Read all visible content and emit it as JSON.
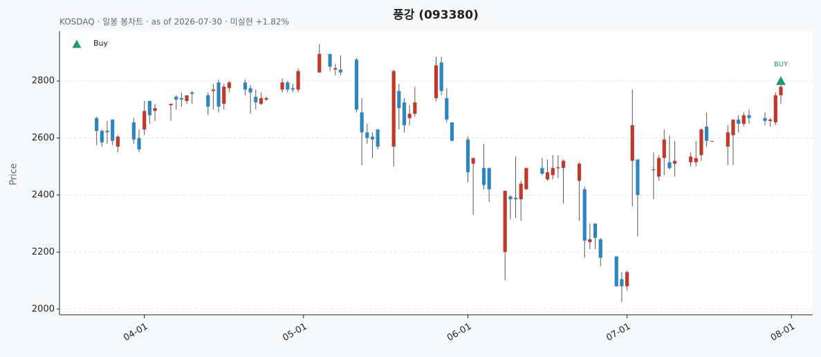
{
  "chart_data": {
    "type": "candlestick",
    "title": "풍강 (093380)",
    "subtitle": "KOSDAQ · 일봉 봉차트 · as of 2026-07-30 · 미실현 +1.82%",
    "y_label": "Price",
    "up_color": "#c0392b",
    "down_color": "#2e86c1",
    "wick_color": "#555555",
    "grid": true,
    "legend": "upper left",
    "xlim": [
      "03-16",
      "08-05"
    ],
    "xticks": [
      "04-01",
      "05-01",
      "06-01",
      "07-01",
      "08-01"
    ],
    "ylim": [
      1980,
      2975
    ],
    "yticks": [
      2000,
      2200,
      2400,
      2600,
      2800
    ],
    "x": [
      "03-23",
      "03-24",
      "03-25",
      "03-26",
      "03-27",
      "03-30",
      "03-31",
      "04-01",
      "04-02",
      "04-03",
      "04-06",
      "04-07",
      "04-08",
      "04-09",
      "04-10",
      "04-13",
      "04-14",
      "04-15",
      "04-16",
      "04-17",
      "04-20",
      "04-21",
      "04-22",
      "04-23",
      "04-24",
      "04-27",
      "04-28",
      "04-29",
      "04-30",
      "05-04",
      "05-06",
      "05-07",
      "05-08",
      "05-11",
      "05-12",
      "05-13",
      "05-14",
      "05-15",
      "05-18",
      "05-19",
      "05-20",
      "05-21",
      "05-22",
      "05-26",
      "05-27",
      "05-28",
      "05-29",
      "06-01",
      "06-02",
      "06-04",
      "06-05",
      "06-08",
      "06-09",
      "06-10",
      "06-11",
      "06-12",
      "06-15",
      "06-16",
      "06-17",
      "06-18",
      "06-19",
      "06-22",
      "06-23",
      "06-24",
      "06-25",
      "06-26",
      "06-29",
      "06-30",
      "07-01",
      "07-02",
      "07-03",
      "07-06",
      "07-07",
      "07-08",
      "07-09",
      "07-10",
      "07-13",
      "07-14",
      "07-15",
      "07-16",
      "07-17",
      "07-20",
      "07-21",
      "07-22",
      "07-23",
      "07-24",
      "07-27",
      "07-28",
      "07-29",
      "07-30"
    ],
    "open": [
      2670,
      2625,
      2625,
      2665,
      2570,
      2655,
      2600,
      2630,
      2730,
      2695,
      2715,
      2745,
      2740,
      2730,
      2760,
      2750,
      2765,
      2795,
      2720,
      2775,
      2795,
      2775,
      2745,
      2720,
      2735,
      2770,
      2795,
      2775,
      2770,
      2830,
      2895,
      2840,
      2840,
      2875,
      2690,
      2620,
      2605,
      2630,
      2570,
      2765,
      2725,
      2670,
      2685,
      2740,
      2865,
      2740,
      2655,
      2595,
      2510,
      2495,
      2495,
      2200,
      2395,
      2390,
      2385,
      2420,
      2495,
      2455,
      2470,
      2495,
      2495,
      2450,
      2420,
      2235,
      2300,
      2245,
      2185,
      2105,
      2080,
      2520,
      2525,
      2488,
      2465,
      2530,
      2515,
      2510,
      2515,
      2515,
      2540,
      2640,
      2588,
      2570,
      2610,
      2665,
      2650,
      2680,
      2670,
      2660,
      2655,
      2750
    ],
    "high": [
      2675,
      2630,
      2660,
      2665,
      2610,
      2670,
      2630,
      2730,
      2730,
      2720,
      2720,
      2750,
      2760,
      2750,
      2765,
      2760,
      2790,
      2805,
      2790,
      2800,
      2805,
      2785,
      2770,
      2760,
      2745,
      2810,
      2800,
      2790,
      2845,
      2930,
      2895,
      2860,
      2890,
      2880,
      2740,
      2650,
      2620,
      2630,
      2840,
      2790,
      2740,
      2715,
      2780,
      2885,
      2885,
      2775,
      2655,
      2605,
      2530,
      2580,
      2495,
      2415,
      2400,
      2535,
      2450,
      2495,
      2530,
      2525,
      2540,
      2540,
      2525,
      2515,
      2430,
      2300,
      2300,
      2250,
      2185,
      2130,
      2135,
      2770,
      2525,
      2550,
      2540,
      2630,
      2610,
      2590,
      2550,
      2590,
      2635,
      2690,
      2590,
      2645,
      2665,
      2680,
      2690,
      2700,
      2690,
      2670,
      2760,
      2790
    ],
    "low": [
      2575,
      2570,
      2580,
      2575,
      2550,
      2580,
      2550,
      2610,
      2650,
      2660,
      2660,
      2700,
      2710,
      2720,
      2720,
      2680,
      2700,
      2690,
      2700,
      2760,
      2750,
      2685,
      2700,
      2715,
      2730,
      2760,
      2760,
      2760,
      2760,
      2830,
      2835,
      2820,
      2820,
      2690,
      2505,
      2580,
      2530,
      2560,
      2500,
      2630,
      2620,
      2645,
      2675,
      2730,
      2750,
      2655,
      2590,
      2445,
      2330,
      2420,
      2375,
      2100,
      2315,
      2320,
      2310,
      2420,
      2470,
      2450,
      2455,
      2460,
      2370,
      2310,
      2180,
      2210,
      2210,
      2150,
      2080,
      2025,
      2065,
      2360,
      2255,
      2385,
      2450,
      2470,
      2490,
      2465,
      2500,
      2500,
      2520,
      2570,
      2588,
      2505,
      2505,
      2620,
      2640,
      2650,
      2645,
      2640,
      2645,
      2720
    ],
    "close": [
      2625,
      2585,
      2620,
      2590,
      2605,
      2595,
      2560,
      2695,
      2680,
      2705,
      2720,
      2735,
      2735,
      2750,
      2755,
      2710,
      2770,
      2710,
      2780,
      2795,
      2770,
      2760,
      2725,
      2740,
      2740,
      2795,
      2770,
      2770,
      2835,
      2895,
      2850,
      2845,
      2830,
      2700,
      2620,
      2600,
      2595,
      2570,
      2835,
      2705,
      2645,
      2685,
      2725,
      2855,
      2765,
      2665,
      2590,
      2480,
      2530,
      2435,
      2420,
      2415,
      2385,
      2385,
      2440,
      2495,
      2475,
      2480,
      2495,
      2497,
      2520,
      2510,
      2240,
      2245,
      2250,
      2180,
      2080,
      2080,
      2130,
      2645,
      2400,
      2490,
      2530,
      2595,
      2495,
      2520,
      2535,
      2530,
      2630,
      2590,
      2590,
      2620,
      2665,
      2650,
      2680,
      2670,
      2660,
      2665,
      2750,
      2780
    ],
    "buy": {
      "name": "Buy",
      "label": "BUY",
      "color": "#1a9c6b",
      "x": [
        "07-30"
      ],
      "y": [
        2800
      ]
    }
  }
}
